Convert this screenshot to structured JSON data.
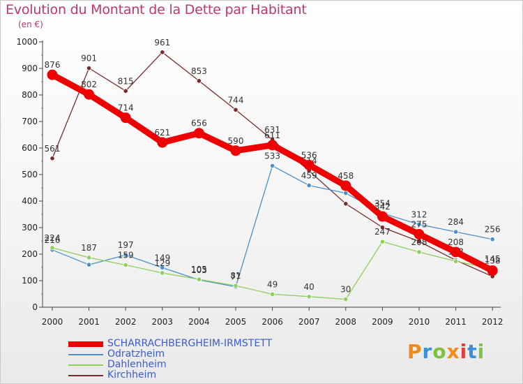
{
  "title": "Evolution du Montant de la Dette par Habitant",
  "unit": "(en €)",
  "logo": {
    "text": "Proxiti",
    "colors": [
      "#f08a1c",
      "#3a8fd8",
      "#7cc242",
      "#f08a1c",
      "#e43b3b",
      "#3a8fd8",
      "#7cc242"
    ]
  },
  "chart_data": {
    "type": "line",
    "title": "Evolution du Montant de la Dette par Habitant",
    "ylabel": "(en €)",
    "xlabel": "",
    "ylim": [
      0,
      1000
    ],
    "yticks": [
      "0",
      "100",
      "200",
      "300",
      "400",
      "500",
      "600",
      "700",
      "800",
      "900",
      "1000"
    ],
    "categories": [
      "2000",
      "2001",
      "2002",
      "2003",
      "2004",
      "2005",
      "2006",
      "2007",
      "2008",
      "2009",
      "2010",
      "2011",
      "2012"
    ],
    "series": [
      {
        "name": "Kirchheim",
        "color": "#7a2a2a",
        "values": [
          561,
          901,
          815,
          961,
          853,
          744,
          631,
          514,
          390,
          301,
          248,
          177,
          116
        ],
        "labels": [
          "561",
          "901",
          "815",
          "961",
          "853",
          "744",
          "631",
          "514",
          "",
          "",
          "",
          "",
          ""
        ]
      },
      {
        "name": "Odratzheim",
        "color": "#4a90c8",
        "values": [
          216,
          160,
          197,
          149,
          103,
          77,
          533,
          459,
          430,
          354,
          312,
          284,
          256
        ],
        "labels": [
          "216",
          "",
          "197",
          "149",
          "103",
          "77",
          "533",
          "459",
          "",
          "354",
          "312",
          "284",
          "256"
        ]
      },
      {
        "name": "Dahlenheim",
        "color": "#8ccf5a",
        "values": [
          224,
          187,
          159,
          129,
          105,
          81,
          49,
          40,
          30,
          247,
          208,
          173,
          145
        ],
        "labels": [
          "224",
          "187",
          "159",
          "129",
          "105",
          "81",
          "49",
          "40",
          "30",
          "247",
          "208",
          "173",
          "145"
        ]
      },
      {
        "name": "SCHARRACHBERGHEIM-IRMSTETT",
        "color": "#ee0000",
        "values": [
          876,
          802,
          714,
          621,
          656,
          590,
          611,
          536,
          458,
          342,
          275,
          208,
          138
        ],
        "labels": [
          "876",
          "802",
          "714",
          "621",
          "656",
          "590",
          "611",
          "536",
          "458",
          "342",
          "275",
          "208",
          "138"
        ]
      }
    ],
    "legend": [
      {
        "name": "SCHARRACHBERGHEIM-IRMSTETT",
        "color": "#ee0000"
      },
      {
        "name": "Odratzheim",
        "color": "#4a90c8"
      },
      {
        "name": "Dahlenheim",
        "color": "#8ccf5a"
      },
      {
        "name": "Kirchheim",
        "color": "#7a2a2a"
      }
    ],
    "legend_position": "bottom-left"
  }
}
